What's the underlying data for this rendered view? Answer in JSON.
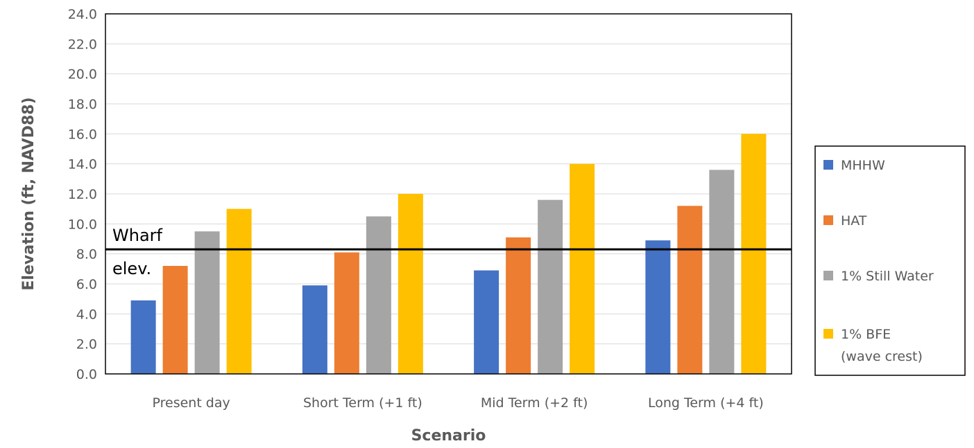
{
  "chart_data": {
    "type": "bar",
    "title": "",
    "xlabel": "Scenario",
    "ylabel": "Elevation (ft, NAVD88)",
    "ylim": [
      0,
      24
    ],
    "ytick_step": 2,
    "ytick_labels": [
      "0.0",
      "2.0",
      "4.0",
      "6.0",
      "8.0",
      "10.0",
      "12.0",
      "14.0",
      "16.0",
      "18.0",
      "20.0",
      "22.0",
      "24.0"
    ],
    "grid": true,
    "legend_position": "right",
    "categories": [
      "Present day",
      "Short Term (+1 ft)",
      "Mid Term (+2 ft)",
      "Long Term (+4 ft)"
    ],
    "series": [
      {
        "name": "MHHW",
        "color": "#4472C4",
        "values": [
          4.9,
          5.9,
          6.9,
          8.9
        ]
      },
      {
        "name": "HAT",
        "color": "#ED7D31",
        "values": [
          7.2,
          8.1,
          9.1,
          11.2
        ]
      },
      {
        "name": "1% Still Water",
        "color": "#A5A5A5",
        "values": [
          9.5,
          10.5,
          11.6,
          13.6
        ]
      },
      {
        "name": "1% BFE (wave crest)",
        "name_lines": [
          "1% BFE",
          "(wave crest)"
        ],
        "color": "#FFC000",
        "values": [
          11.0,
          12.0,
          14.0,
          16.0
        ]
      }
    ],
    "reference_line": {
      "value": 8.3,
      "label_lines": [
        "Wharf",
        "elev."
      ],
      "color": "#000000"
    }
  }
}
